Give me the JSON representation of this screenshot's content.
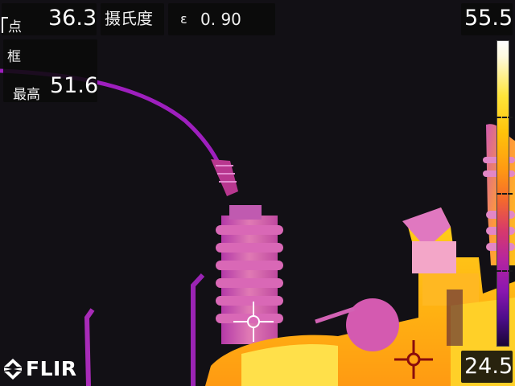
{
  "spot": {
    "label": "点",
    "value": "36.3"
  },
  "unit": {
    "label": "摄氏度"
  },
  "emissivity": {
    "symbol": "ε",
    "value": "0. 90"
  },
  "box": {
    "label": "框",
    "max_label": "最高",
    "max_value": "51.6"
  },
  "scale": {
    "max": "55.5",
    "min": "24.5"
  },
  "brand": {
    "logo_text": "FLIR"
  },
  "colors": {
    "accent": "#ff9a12",
    "hot": "#ffe53a",
    "cold": "#180634",
    "wire": "#a020c0"
  },
  "icons": [
    "spot-crosshair-icon",
    "hotspot-marker-icon",
    "flir-logo-icon"
  ]
}
